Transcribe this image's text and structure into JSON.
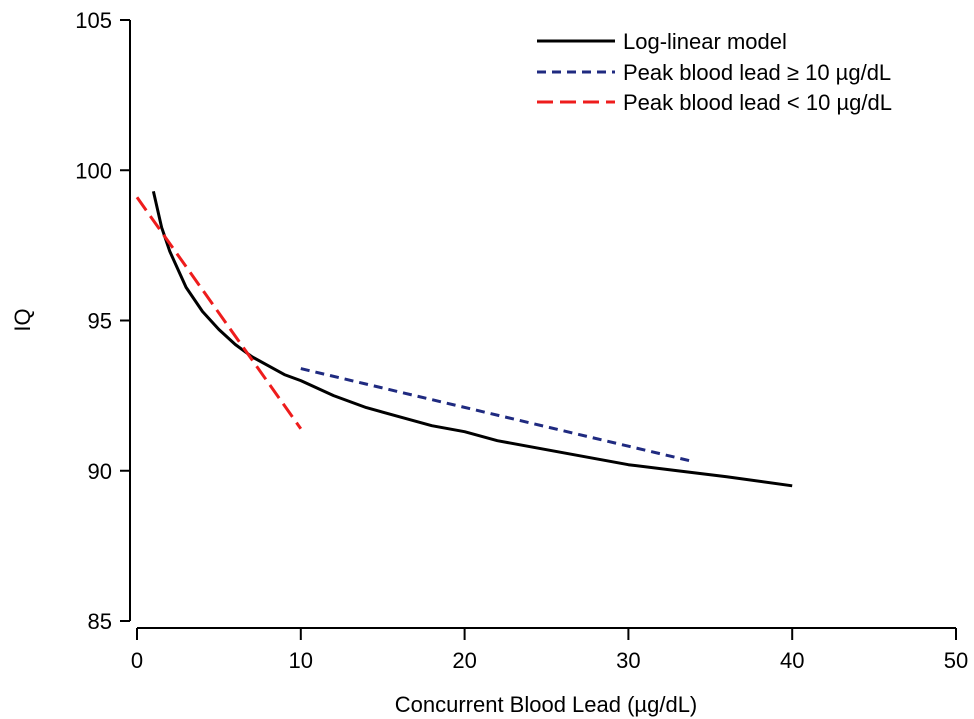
{
  "chart_data": {
    "type": "line",
    "title": "",
    "xlabel": "Concurrent Blood Lead (µg/dL)",
    "ylabel": "IQ",
    "xlim": [
      0,
      50
    ],
    "ylim": [
      85,
      105
    ],
    "xticks": [
      0,
      10,
      20,
      30,
      40,
      50
    ],
    "yticks": [
      85,
      90,
      95,
      100,
      105
    ],
    "grid": false,
    "legend_position": "top-right",
    "series": [
      {
        "name": "Log-linear model",
        "color": "#000000",
        "style": "solid",
        "x": [
          1,
          1.5,
          2,
          3,
          4,
          5,
          6,
          7,
          8,
          9,
          10,
          12,
          14,
          16,
          18,
          20,
          22,
          25,
          28,
          30,
          33,
          36,
          40
        ],
        "y": [
          99.3,
          98.1,
          97.3,
          96.1,
          95.3,
          94.7,
          94.2,
          93.8,
          93.5,
          93.2,
          93.0,
          92.5,
          92.1,
          91.8,
          91.5,
          91.3,
          91.0,
          90.7,
          90.4,
          90.2,
          90.0,
          89.8,
          89.5
        ]
      },
      {
        "name": "Peak blood lead ≥ 10 µg/dL",
        "color": "#1f2a80",
        "style": "dashed",
        "x": [
          10,
          34
        ],
        "y": [
          93.4,
          90.3
        ]
      },
      {
        "name": "Peak blood lead < 10 µg/dL",
        "color": "#ee1c1c",
        "style": "longdash",
        "x": [
          0,
          10
        ],
        "y": [
          99.1,
          91.4
        ]
      }
    ]
  }
}
